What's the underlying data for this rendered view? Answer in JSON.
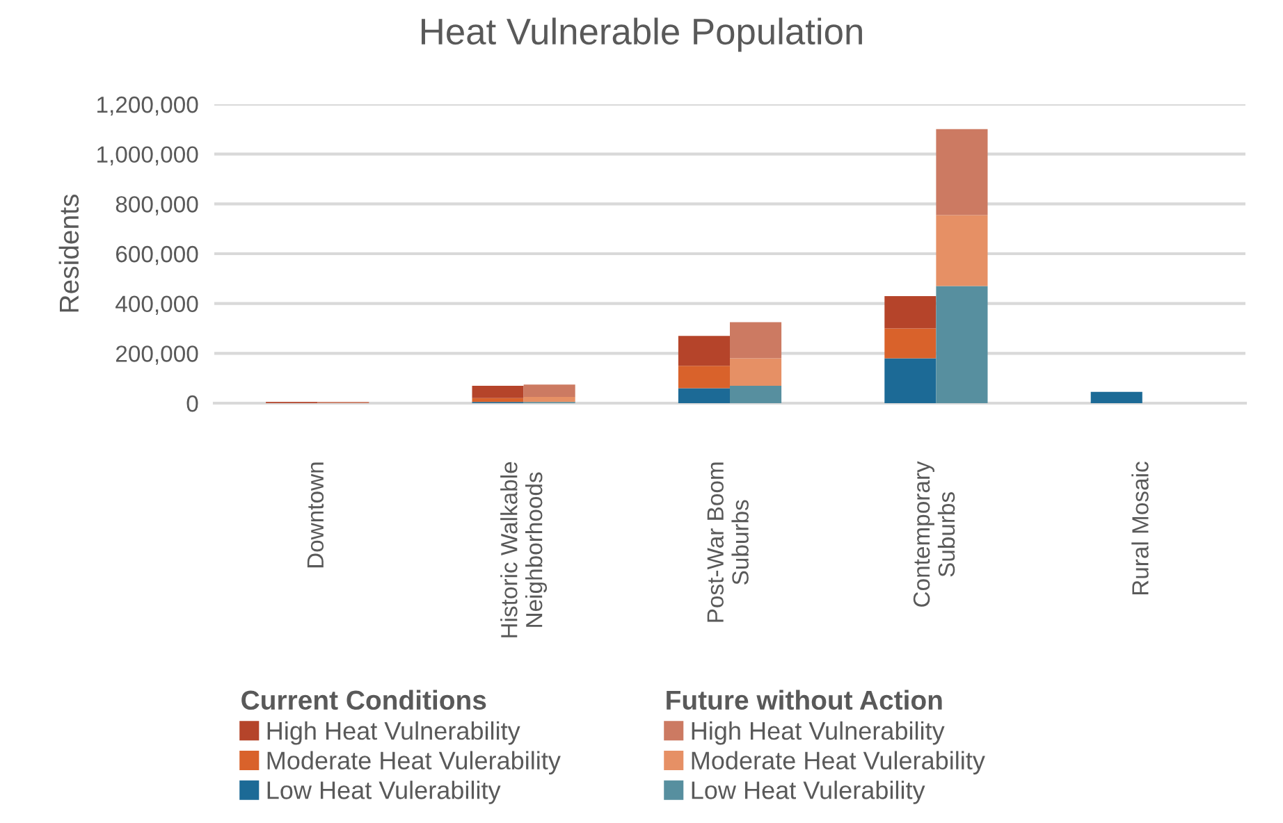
{
  "chart_data": {
    "type": "bar",
    "title": "Heat Vulnerable Population",
    "ylabel": "Residents",
    "categories": [
      "Downtown",
      "Historic Walkable\nNeighborhoods",
      "Post-War Boom\nSuburbs",
      "Contemporary\nSuburbs",
      "Rural Mosaic"
    ],
    "legend_title": [
      "Current Conditions",
      "Future without Action"
    ],
    "series": [
      {
        "name": "Low Heat Vulerability",
        "color": "#1c6a96",
        "values": [
          0,
          5000,
          60000,
          180000,
          45000
        ],
        "base": [
          null,
          0,
          0,
          0,
          0
        ]
      },
      {
        "name": "Moderate Heat Vulerability",
        "color": "#d9622b",
        "values": [
          0,
          15000,
          90000,
          120000,
          0
        ],
        "base": [
          null,
          5000,
          60000,
          180000,
          null
        ]
      },
      {
        "name": "High Heat Vulnerability",
        "color": "#b5442a",
        "values": [
          5000,
          50000,
          120000,
          130000,
          0
        ],
        "base": [
          0,
          20000,
          150000,
          300000,
          null
        ]
      },
      {
        "name": "Low Heat Vulerability",
        "color": "#578f9f",
        "values": [
          0,
          5000,
          70000,
          470000,
          0
        ],
        "base": [
          null,
          0,
          0,
          0,
          null
        ]
      },
      {
        "name": "Moderate Heat Vulerability",
        "color": "#e69065",
        "values": [
          0,
          20000,
          110000,
          285000,
          0
        ],
        "base": [
          null,
          5000,
          70000,
          470000,
          null
        ]
      },
      {
        "name": "High Heat Vulnerability",
        "color": "#cc7a62",
        "values": [
          5000,
          50000,
          145000,
          345000,
          0
        ],
        "base": [
          0,
          25000,
          180000,
          755000,
          null
        ]
      }
    ],
    "ylim": [
      0,
      1200000
    ],
    "yticks": [
      {
        "value": 0,
        "label": "0"
      },
      {
        "value": 200000,
        "label": "200,000"
      },
      {
        "value": 400000,
        "label": "400,000"
      },
      {
        "value": 600000,
        "label": "600,000"
      },
      {
        "value": 800000,
        "label": "800,000"
      },
      {
        "value": 1000000,
        "label": "1,000,000"
      },
      {
        "value": 1200000,
        "label": "1,200,000"
      }
    ],
    "grid": "y",
    "legend": "bottom"
  }
}
